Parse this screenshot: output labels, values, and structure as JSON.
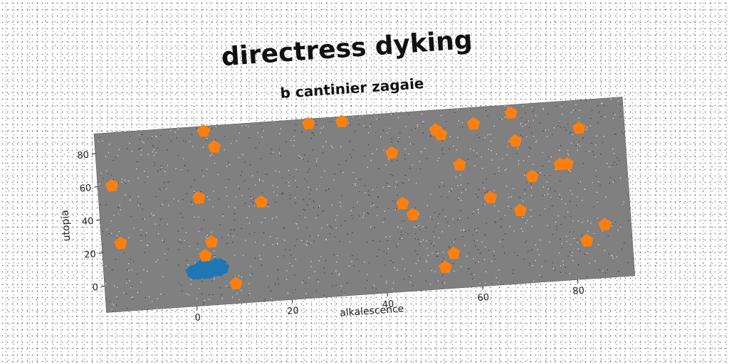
{
  "chart_data": {
    "type": "scatter",
    "title": "directress dyking",
    "subtitle": "b cantinier zagaie",
    "xlabel": "alkalescence",
    "ylabel": "utopia",
    "xlim": [
      -19,
      92
    ],
    "ylim": [
      -16,
      92
    ],
    "xticks": [
      0,
      20,
      40,
      60,
      80
    ],
    "yticks": [
      0,
      20,
      40,
      60,
      80
    ],
    "grid": false,
    "plot_background": "#808080",
    "series": [
      {
        "color": "#1f77b4",
        "marker": "pentagon",
        "points": [
          [
            -0.5,
            5
          ],
          [
            0.5,
            6
          ],
          [
            1.5,
            4.5
          ],
          [
            2.5,
            6.5
          ],
          [
            3.5,
            5
          ],
          [
            4.5,
            6
          ],
          [
            5.5,
            5.5
          ],
          [
            0,
            4
          ],
          [
            1,
            7
          ],
          [
            2,
            5
          ],
          [
            3,
            4
          ],
          [
            4,
            7.5
          ],
          [
            5,
            4.5
          ],
          [
            6,
            6
          ],
          [
            1.5,
            8
          ],
          [
            3,
            8
          ],
          [
            4.5,
            8.5
          ],
          [
            2.5,
            3.5
          ],
          [
            0.5,
            3.5
          ],
          [
            5.5,
            8
          ]
        ]
      },
      {
        "color": "#ff7f0e",
        "marker": "pentagon",
        "points": [
          [
            -16,
            60
          ],
          [
            -15,
            25
          ],
          [
            4,
            89
          ],
          [
            6,
            79
          ],
          [
            26,
            89
          ],
          [
            33,
            89
          ],
          [
            2,
            49
          ],
          [
            15,
            44
          ],
          [
            4,
            22
          ],
          [
            2.5,
            14
          ],
          [
            8.5,
            -4
          ],
          [
            43,
            68
          ],
          [
            44.5,
            37
          ],
          [
            46.5,
            30
          ],
          [
            52.5,
            80
          ],
          [
            53.5,
            77
          ],
          [
            57,
            58
          ],
          [
            60.5,
            82
          ],
          [
            68.5,
            87
          ],
          [
            69,
            70
          ],
          [
            63,
            37
          ],
          [
            69,
            28
          ],
          [
            72,
            48
          ],
          [
            78,
            54
          ],
          [
            79.5,
            54
          ],
          [
            82.5,
            75
          ],
          [
            52.5,
            -3
          ],
          [
            54.5,
            5
          ],
          [
            82.5,
            7
          ],
          [
            86.5,
            16
          ]
        ]
      }
    ]
  }
}
